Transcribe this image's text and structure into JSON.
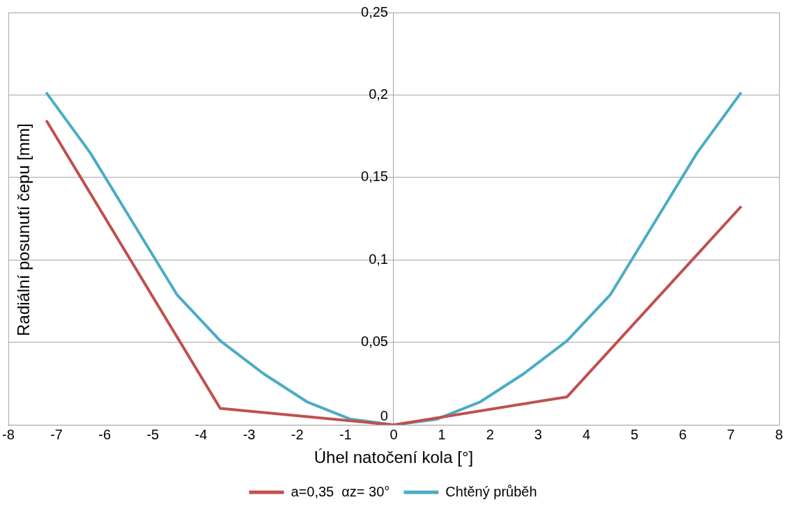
{
  "chart_data": {
    "type": "line",
    "xlabel": "Úhel natočení kola [°]",
    "ylabel": "Radiální posunutí čepu [mm]",
    "xlim": [
      -8,
      8
    ],
    "xticks": [
      -8,
      -7,
      -6,
      -5,
      -4,
      -3,
      -2,
      -1,
      0,
      1,
      2,
      3,
      4,
      5,
      6,
      7,
      8
    ],
    "ylim": [
      0,
      0.25
    ],
    "yticks": [
      0,
      {
        "value": 0.05,
        "label": "0,05"
      },
      {
        "value": 0.1,
        "label": "0,1"
      },
      {
        "value": 0.15,
        "label": "0,15"
      },
      {
        "value": 0.2,
        "label": "0,2"
      },
      {
        "value": 0.25,
        "label": "0,25"
      }
    ],
    "grid": "y",
    "legend": "bottom",
    "marker": "none",
    "line_style": "solid",
    "series": [
      {
        "name": "a=0,35  αz= 30°",
        "color": "#c0504d",
        "x": [
          -7.2,
          -3.6,
          0,
          3.6,
          7.2
        ],
        "values": [
          0.184,
          0.01,
          0,
          0.017,
          0.132
        ]
      },
      {
        "name": "Chtěný průběh",
        "color": "#4bacc6",
        "x": [
          -7.2,
          -6.3,
          -5.4,
          -4.5,
          -3.6,
          -2.7,
          -1.8,
          -0.9,
          0,
          0.9,
          1.8,
          2.7,
          3.6,
          4.5,
          5.4,
          6.3,
          7.2
        ],
        "values": [
          0.201,
          0.165,
          0.122,
          0.079,
          0.051,
          0.031,
          0.014,
          0.0035,
          0,
          0.0035,
          0.014,
          0.031,
          0.051,
          0.079,
          0.122,
          0.165,
          0.201
        ]
      }
    ]
  }
}
